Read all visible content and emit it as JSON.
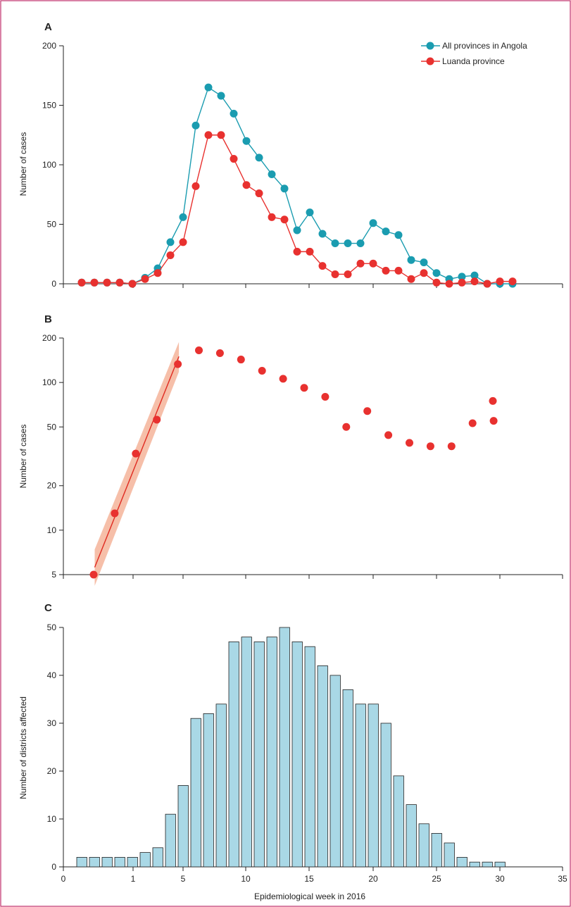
{
  "colors": {
    "frame": "#c0306a",
    "all_provinces": "#1a9cb0",
    "luanda": "#e8312f",
    "fit_line": "#e02a20",
    "fit_band": "#f4b49a",
    "bar_fill": "#a9d8e6",
    "bar_stroke": "#222222"
  },
  "shared_x_axis": {
    "label": "Epidemiological week in 2016",
    "ticks": [
      "0",
      "1",
      "5",
      "10",
      "15",
      "20",
      "25",
      "30",
      "35"
    ]
  },
  "chart_data": [
    {
      "panel": "A",
      "type": "line",
      "ylabel": "Number of cases",
      "ylim": [
        0,
        200
      ],
      "yticks": [
        0,
        50,
        100,
        150,
        200
      ],
      "xlim": [
        -1,
        35
      ],
      "legend": "top-right",
      "series": [
        {
          "name": "All provinces in Angola",
          "color": "#1a9cb0",
          "x": [
            0,
            1,
            2,
            3,
            4,
            5,
            6,
            7,
            8,
            9,
            10,
            11,
            12,
            13,
            14,
            15,
            16,
            17,
            18,
            19,
            20,
            21,
            22,
            23,
            24,
            25,
            26,
            27,
            28,
            29,
            30,
            31,
            32,
            33,
            34
          ],
          "y": [
            1,
            1,
            1,
            1,
            0,
            5,
            13,
            35,
            56,
            133,
            165,
            158,
            143,
            120,
            106,
            92,
            80,
            45,
            60,
            42,
            34,
            34,
            34,
            51,
            44,
            41,
            20,
            18,
            9,
            4,
            6,
            7,
            0,
            0,
            0
          ]
        },
        {
          "name": "Luanda province",
          "color": "#e8312f",
          "x": [
            0,
            1,
            2,
            3,
            4,
            5,
            6,
            7,
            8,
            9,
            10,
            11,
            12,
            13,
            14,
            15,
            16,
            17,
            18,
            19,
            20,
            21,
            22,
            23,
            24,
            25,
            26,
            27,
            28,
            29,
            30,
            31,
            32,
            33,
            34
          ],
          "y": [
            1,
            1,
            1,
            1,
            0,
            4,
            9,
            24,
            35,
            82,
            125,
            125,
            105,
            83,
            76,
            56,
            54,
            27,
            27,
            15,
            8,
            8,
            17,
            17,
            11,
            11,
            4,
            9,
            1,
            0,
            1,
            2,
            0,
            2,
            2
          ]
        }
      ]
    },
    {
      "panel": "B",
      "type": "scatter",
      "ylabel": "Number of cases",
      "yscale": "log",
      "ylim": [
        5,
        200
      ],
      "yticks": [
        5,
        10,
        20,
        50,
        100,
        200
      ],
      "xlim": [
        -1,
        35
      ],
      "points": {
        "color": "#e8312f",
        "x": [
          1,
          2,
          3,
          4,
          5,
          6,
          7,
          8,
          9,
          10,
          11,
          12,
          13,
          14,
          15,
          16,
          17,
          18,
          19,
          20
        ],
        "y": [
          5,
          13,
          33,
          56,
          133,
          165,
          158,
          143,
          120,
          106,
          92,
          80,
          50,
          64,
          44,
          39,
          37,
          37,
          53,
          55
        ]
      },
      "extra_points": [
        {
          "x": 22,
          "y": 75
        }
      ],
      "fit": {
        "x": [
          1.05,
          5.05
        ],
        "y": [
          5.6,
          150
        ],
        "band_low": [
          4.2,
          118
        ],
        "band_high": [
          7.4,
          188
        ]
      }
    },
    {
      "panel": "C",
      "type": "bar",
      "ylabel": "Number of districts affected",
      "ylim": [
        0,
        50
      ],
      "yticks": [
        0,
        10,
        20,
        30,
        40,
        50
      ],
      "x": [
        1,
        2,
        3,
        4,
        5,
        6,
        7,
        8,
        9,
        10,
        11,
        12,
        13,
        14,
        15,
        16,
        17,
        18,
        19,
        20,
        21,
        22,
        23,
        24,
        25,
        26,
        27,
        28,
        29,
        30,
        31,
        32,
        33,
        34,
        35
      ],
      "values": [
        2,
        2,
        2,
        2,
        2,
        3,
        4,
        11,
        17,
        31,
        32,
        34,
        47,
        48,
        47,
        48,
        50,
        47,
        46,
        42,
        40,
        37,
        34,
        34,
        30,
        19,
        13,
        9,
        7,
        5,
        2,
        1,
        1,
        1,
        0
      ]
    }
  ]
}
